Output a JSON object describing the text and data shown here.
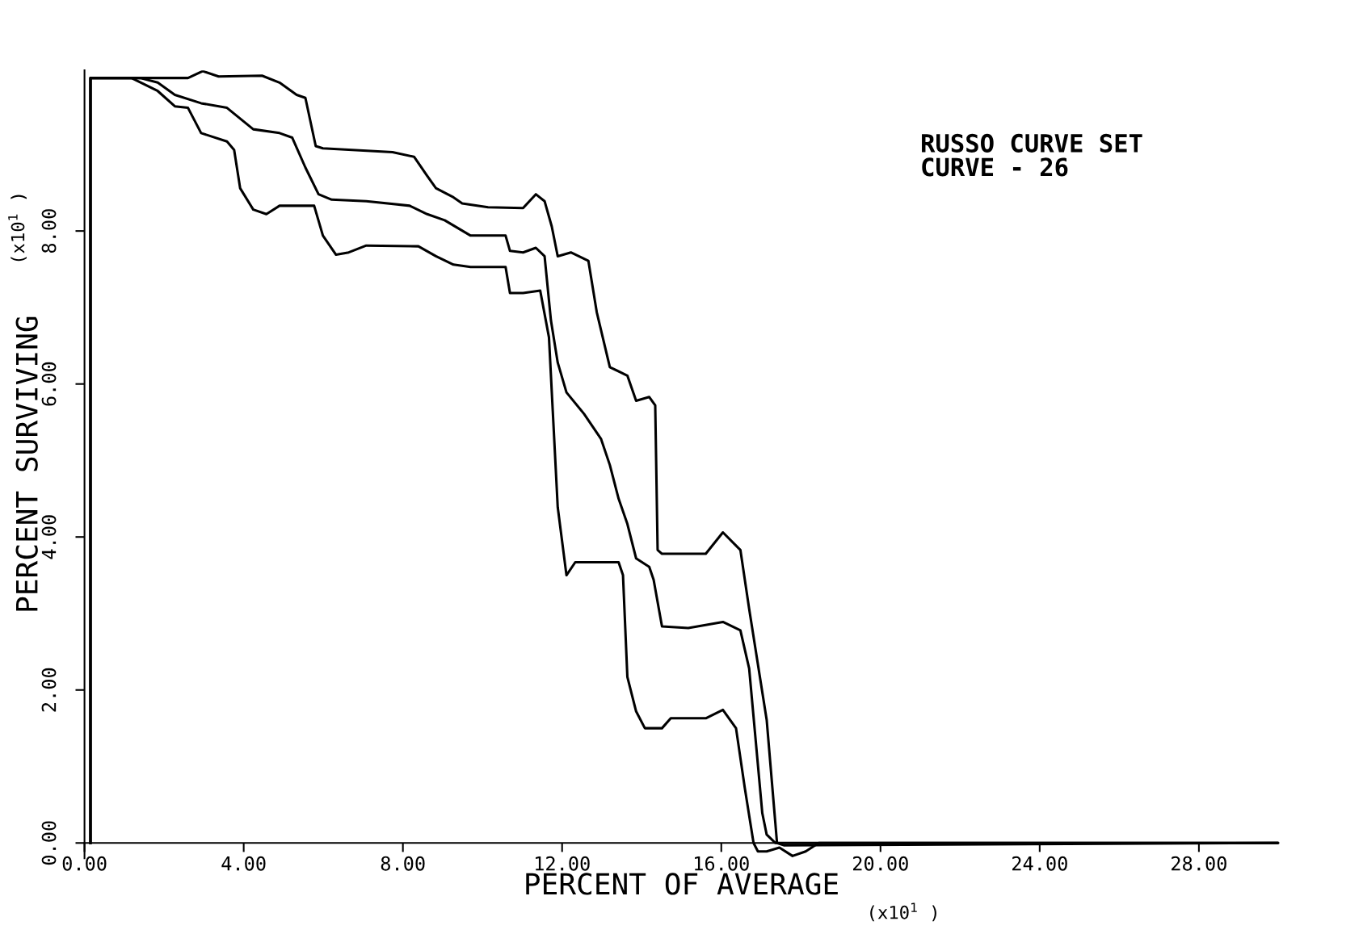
{
  "chart_data": {
    "type": "line",
    "xlabel": "PERCENT OF AVERAGE",
    "ylabel": "PERCENT SURVIVING",
    "annotations": [
      "RUSSO CURVE SET\nCURVE - 26",
      "(x10$^{1}$ )",
      "(x10$^{1}$ )"
    ],
    "xlim": [
      0,
      30
    ],
    "ylim": [
      -0.2,
      10.1
    ],
    "xticks": [
      {
        "value": 0,
        "label": "0.00"
      },
      {
        "value": 4,
        "label": "4.00"
      },
      {
        "value": 8,
        "label": "8.00"
      },
      {
        "value": 12,
        "label": "12.00"
      },
      {
        "value": 16,
        "label": "16.00"
      },
      {
        "value": 20,
        "label": "20.00"
      },
      {
        "value": 24,
        "label": "24.00"
      },
      {
        "value": 28,
        "label": "28.00"
      }
    ],
    "yticks": [
      {
        "value": 0,
        "label": "0.00"
      },
      {
        "value": 2,
        "label": "2.00"
      },
      {
        "value": 4,
        "label": "4.00"
      },
      {
        "value": 6,
        "label": "6.00"
      },
      {
        "value": 8,
        "label": "8.00"
      }
    ],
    "grid": false,
    "line_style": "solid",
    "marker": "none",
    "series": [
      {
        "color": "#000000",
        "x": [
          0.15,
          0.15,
          2.6,
          2.97,
          3.37,
          4.46,
          4.9,
          5.33,
          5.55,
          5.81,
          5.99,
          7.74,
          8.28,
          8.61,
          8.83,
          9.27,
          9.49,
          10.14,
          11.02,
          11.34,
          11.56,
          11.74,
          11.89,
          12.22,
          12.66,
          12.87,
          13.2,
          13.64,
          13.86,
          14.19,
          14.34,
          14.4,
          14.51,
          15.61,
          16.04,
          16.48,
          16.7,
          17.14,
          17.4,
          17.57,
          30
        ],
        "values": [
          0,
          10,
          10,
          10.09,
          10.02,
          10.03,
          9.94,
          9.78,
          9.74,
          9.11,
          9.08,
          9.03,
          8.97,
          8.72,
          8.56,
          8.44,
          8.36,
          8.31,
          8.3,
          8.48,
          8.39,
          8.06,
          7.67,
          7.72,
          7.61,
          6.94,
          6.22,
          6.11,
          5.78,
          5.83,
          5.72,
          3.83,
          3.78,
          3.78,
          4.06,
          3.83,
          3.06,
          1.61,
          0,
          -0.03,
          0
        ]
      },
      {
        "color": "#000000",
        "x": [
          0.15,
          0.15,
          1.4,
          1.84,
          2.27,
          2.93,
          3.58,
          4.24,
          4.9,
          5.22,
          5.55,
          5.88,
          6.21,
          7.08,
          8.17,
          8.61,
          9.05,
          9.7,
          10.58,
          10.69,
          11.02,
          11.34,
          11.56,
          11.72,
          11.89,
          12.11,
          12.55,
          12.98,
          13.2,
          13.42,
          13.64,
          13.86,
          14.19,
          14.3,
          14.51,
          15.17,
          16.04,
          16.48,
          16.7,
          17.03,
          17.14,
          17.36,
          30
        ],
        "values": [
          0,
          10,
          10,
          9.94,
          9.78,
          9.67,
          9.61,
          9.33,
          9.28,
          9.22,
          8.83,
          8.48,
          8.41,
          8.39,
          8.33,
          8.22,
          8.14,
          7.94,
          7.94,
          7.74,
          7.72,
          7.78,
          7.67,
          6.83,
          6.28,
          5.89,
          5.61,
          5.28,
          4.94,
          4.5,
          4.17,
          3.72,
          3.61,
          3.44,
          2.83,
          2.81,
          2.89,
          2.78,
          2.28,
          0.39,
          0.11,
          0,
          0
        ]
      },
      {
        "color": "#000000",
        "x": [
          0.15,
          0.15,
          1.18,
          1.84,
          2.27,
          2.6,
          2.93,
          3.58,
          3.76,
          3.91,
          4.24,
          4.57,
          4.9,
          5.77,
          5.99,
          6.32,
          6.64,
          7.08,
          8.39,
          8.83,
          9.27,
          9.7,
          10.58,
          10.69,
          11.02,
          11.45,
          11.67,
          11.89,
          12.11,
          12.33,
          13.42,
          13.53,
          13.64,
          13.86,
          14.08,
          14.51,
          14.73,
          15.61,
          16.04,
          16.37,
          16.59,
          16.81,
          16.92,
          17.14,
          17.46,
          17.79,
          18.12,
          18.45,
          30
        ],
        "values": [
          0,
          10,
          10,
          9.83,
          9.63,
          9.61,
          9.28,
          9.17,
          9.06,
          8.56,
          8.28,
          8.22,
          8.33,
          8.33,
          7.94,
          7.69,
          7.72,
          7.81,
          7.8,
          7.67,
          7.56,
          7.53,
          7.53,
          7.19,
          7.19,
          7.22,
          6.61,
          4.39,
          3.5,
          3.67,
          3.67,
          3.5,
          2.17,
          1.72,
          1.5,
          1.5,
          1.63,
          1.63,
          1.74,
          1.5,
          0.72,
          0,
          -0.11,
          -0.11,
          -0.06,
          -0.17,
          -0.11,
          0,
          0
        ]
      }
    ]
  }
}
